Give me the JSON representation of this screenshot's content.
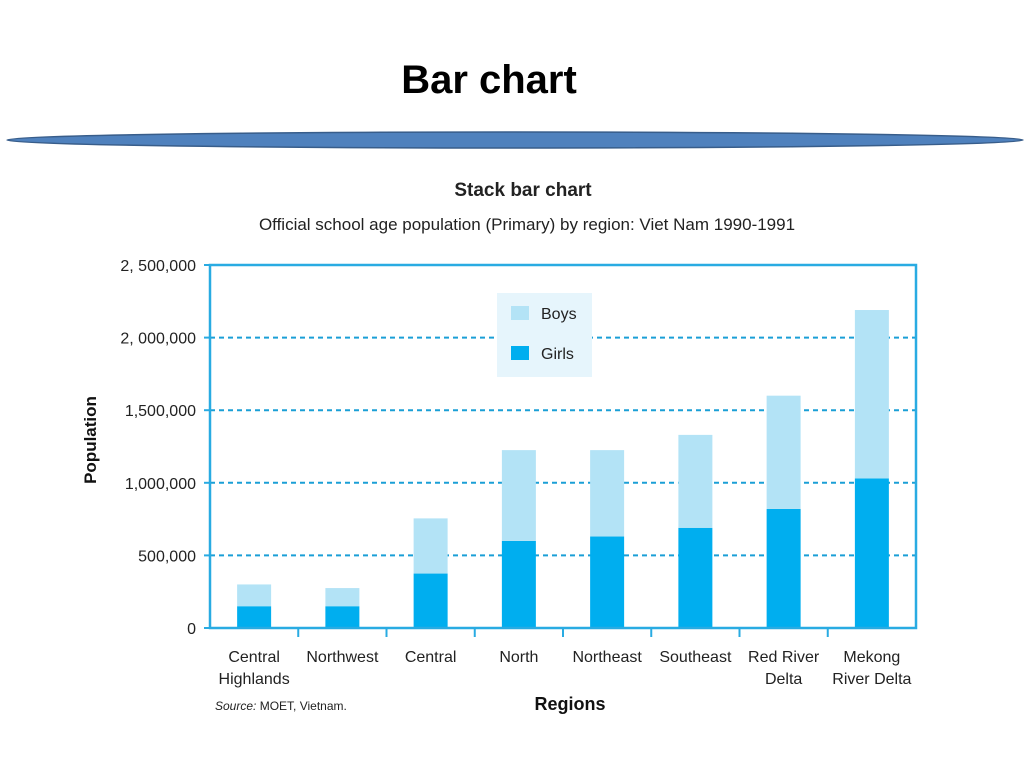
{
  "slide": {
    "title": "Bar chart"
  },
  "chart_data": {
    "type": "bar",
    "stacked": true,
    "title": "Stack bar chart",
    "subtitle": "Official school age population (Primary) by region: Viet Nam 1990-1991",
    "xlabel": "Regions",
    "ylabel": "Population",
    "ylim": [
      0,
      2500000
    ],
    "yticks": [
      0,
      500000,
      1000000,
      1500000,
      2000000,
      2500000
    ],
    "ytick_labels": [
      "0",
      "500,000",
      "1,000,000",
      "1,500,000",
      "2, 000,000",
      "2, 500,000"
    ],
    "categories": [
      [
        "Central",
        "Highlands"
      ],
      [
        "Northwest"
      ],
      [
        "Central"
      ],
      [
        "North"
      ],
      [
        "Northeast"
      ],
      [
        "Southeast"
      ],
      [
        "Red River",
        "Delta"
      ],
      [
        "Mekong",
        "River Delta"
      ]
    ],
    "series": [
      {
        "name": "Girls",
        "color": "#00aeef",
        "values": [
          150000,
          150000,
          375000,
          600000,
          630000,
          690000,
          820000,
          1030000
        ]
      },
      {
        "name": "Boys",
        "color": "#b3e3f6",
        "values": [
          150000,
          125000,
          380000,
          625000,
          595000,
          640000,
          780000,
          1160000
        ]
      }
    ],
    "legend": {
      "placement": "top-center",
      "entries": [
        "Boys",
        "Girls"
      ]
    },
    "grid": {
      "y": true,
      "style": "dashed"
    },
    "source_label": "Source:",
    "source_text": "MOET, Vietnam."
  }
}
